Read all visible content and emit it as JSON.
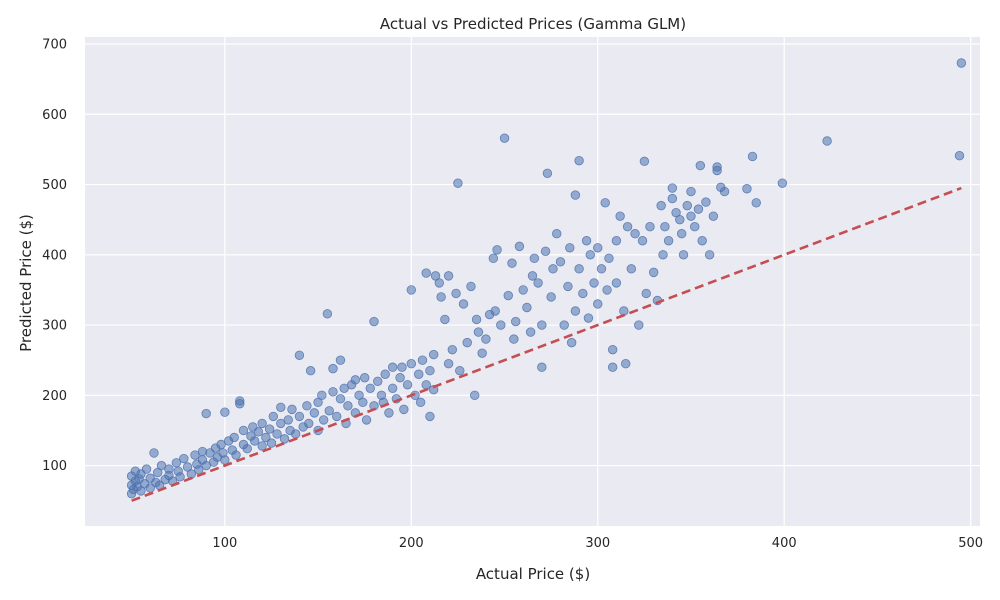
{
  "chart_data": {
    "type": "scatter",
    "title": "Actual vs Predicted Prices (Gamma GLM)",
    "xlabel": "Actual Price ($)",
    "ylabel": "Predicted Price ($)",
    "xlim": [
      25,
      505
    ],
    "ylim": [
      14,
      710
    ],
    "xticks": [
      100,
      200,
      300,
      400,
      500
    ],
    "yticks": [
      100,
      200,
      300,
      400,
      500,
      600,
      700
    ],
    "grid": true,
    "background": "#eaeaf2",
    "point_color": "#4c72b0",
    "point_opacity": 0.55,
    "reference_line": {
      "from": [
        50,
        50
      ],
      "to": [
        495,
        495
      ],
      "style": "dashed",
      "color": "#c44e52"
    },
    "series": [
      {
        "points": [
          [
            50,
            60
          ],
          [
            50,
            72
          ],
          [
            50,
            85
          ],
          [
            51,
            66
          ],
          [
            52,
            78
          ],
          [
            52,
            92
          ],
          [
            53,
            70
          ],
          [
            54,
            81
          ],
          [
            55,
            64
          ],
          [
            55,
            88
          ],
          [
            57,
            74
          ],
          [
            58,
            95
          ],
          [
            60,
            68
          ],
          [
            60,
            82
          ],
          [
            62,
            118
          ],
          [
            63,
            76
          ],
          [
            64,
            90
          ],
          [
            65,
            72
          ],
          [
            66,
            100
          ],
          [
            68,
            80
          ],
          [
            70,
            95
          ],
          [
            70,
            86
          ],
          [
            72,
            78
          ],
          [
            74,
            104
          ],
          [
            75,
            92
          ],
          [
            76,
            84
          ],
          [
            78,
            110
          ],
          [
            80,
            98
          ],
          [
            82,
            88
          ],
          [
            84,
            115
          ],
          [
            85,
            102
          ],
          [
            86,
            94
          ],
          [
            88,
            120
          ],
          [
            88,
            108
          ],
          [
            90,
            174
          ],
          [
            90,
            100
          ],
          [
            92,
            118
          ],
          [
            94,
            105
          ],
          [
            95,
            125
          ],
          [
            96,
            112
          ],
          [
            98,
            130
          ],
          [
            99,
            118
          ],
          [
            100,
            176
          ],
          [
            100,
            108
          ],
          [
            102,
            135
          ],
          [
            104,
            122
          ],
          [
            105,
            140
          ],
          [
            106,
            115
          ],
          [
            108,
            192
          ],
          [
            108,
            188
          ],
          [
            110,
            130
          ],
          [
            110,
            150
          ],
          [
            112,
            124
          ],
          [
            114,
            142
          ],
          [
            115,
            155
          ],
          [
            116,
            135
          ],
          [
            118,
            148
          ],
          [
            120,
            128
          ],
          [
            120,
            160
          ],
          [
            122,
            140
          ],
          [
            124,
            152
          ],
          [
            125,
            132
          ],
          [
            126,
            170
          ],
          [
            128,
            145
          ],
          [
            130,
            183
          ],
          [
            130,
            160
          ],
          [
            132,
            138
          ],
          [
            134,
            165
          ],
          [
            135,
            150
          ],
          [
            136,
            180
          ],
          [
            138,
            145
          ],
          [
            140,
            170
          ],
          [
            140,
            257
          ],
          [
            142,
            155
          ],
          [
            144,
            185
          ],
          [
            145,
            160
          ],
          [
            146,
            235
          ],
          [
            148,
            175
          ],
          [
            150,
            190
          ],
          [
            150,
            150
          ],
          [
            152,
            200
          ],
          [
            153,
            165
          ],
          [
            155,
            316
          ],
          [
            156,
            178
          ],
          [
            158,
            238
          ],
          [
            158,
            205
          ],
          [
            160,
            170
          ],
          [
            162,
            250
          ],
          [
            162,
            195
          ],
          [
            164,
            210
          ],
          [
            165,
            160
          ],
          [
            166,
            185
          ],
          [
            168,
            215
          ],
          [
            170,
            175
          ],
          [
            170,
            222
          ],
          [
            172,
            200
          ],
          [
            174,
            190
          ],
          [
            175,
            225
          ],
          [
            176,
            165
          ],
          [
            178,
            210
          ],
          [
            180,
            305
          ],
          [
            180,
            185
          ],
          [
            182,
            220
          ],
          [
            184,
            200
          ],
          [
            185,
            190
          ],
          [
            186,
            230
          ],
          [
            188,
            175
          ],
          [
            190,
            240
          ],
          [
            190,
            210
          ],
          [
            192,
            195
          ],
          [
            194,
            225
          ],
          [
            195,
            240
          ],
          [
            196,
            180
          ],
          [
            198,
            215
          ],
          [
            200,
            245
          ],
          [
            200,
            350
          ],
          [
            202,
            200
          ],
          [
            204,
            230
          ],
          [
            205,
            190
          ],
          [
            206,
            250
          ],
          [
            208,
            374
          ],
          [
            208,
            215
          ],
          [
            210,
            235
          ],
          [
            210,
            170
          ],
          [
            212,
            208
          ],
          [
            212,
            258
          ],
          [
            213,
            370
          ],
          [
            215,
            360
          ],
          [
            216,
            340
          ],
          [
            218,
            308
          ],
          [
            220,
            370
          ],
          [
            220,
            245
          ],
          [
            222,
            265
          ],
          [
            224,
            345
          ],
          [
            225,
            502
          ],
          [
            226,
            235
          ],
          [
            228,
            330
          ],
          [
            230,
            275
          ],
          [
            232,
            355
          ],
          [
            234,
            200
          ],
          [
            235,
            308
          ],
          [
            236,
            290
          ],
          [
            238,
            260
          ],
          [
            240,
            280
          ],
          [
            242,
            315
          ],
          [
            244,
            395
          ],
          [
            245,
            320
          ],
          [
            246,
            407
          ],
          [
            248,
            300
          ],
          [
            250,
            566
          ],
          [
            252,
            342
          ],
          [
            254,
            388
          ],
          [
            255,
            280
          ],
          [
            256,
            305
          ],
          [
            258,
            412
          ],
          [
            260,
            350
          ],
          [
            262,
            325
          ],
          [
            264,
            290
          ],
          [
            265,
            370
          ],
          [
            266,
            395
          ],
          [
            268,
            360
          ],
          [
            270,
            240
          ],
          [
            270,
            300
          ],
          [
            272,
            405
          ],
          [
            273,
            516
          ],
          [
            275,
            340
          ],
          [
            276,
            380
          ],
          [
            278,
            430
          ],
          [
            280,
            390
          ],
          [
            282,
            300
          ],
          [
            284,
            355
          ],
          [
            285,
            410
          ],
          [
            286,
            275
          ],
          [
            288,
            320
          ],
          [
            288,
            485
          ],
          [
            290,
            380
          ],
          [
            290,
            534
          ],
          [
            292,
            345
          ],
          [
            294,
            420
          ],
          [
            295,
            310
          ],
          [
            296,
            400
          ],
          [
            298,
            360
          ],
          [
            300,
            330
          ],
          [
            300,
            410
          ],
          [
            302,
            380
          ],
          [
            304,
            474
          ],
          [
            305,
            350
          ],
          [
            306,
            395
          ],
          [
            308,
            240
          ],
          [
            308,
            265
          ],
          [
            310,
            420
          ],
          [
            310,
            360
          ],
          [
            312,
            455
          ],
          [
            314,
            320
          ],
          [
            315,
            245
          ],
          [
            316,
            440
          ],
          [
            318,
            380
          ],
          [
            320,
            430
          ],
          [
            322,
            300
          ],
          [
            324,
            420
          ],
          [
            325,
            533
          ],
          [
            326,
            345
          ],
          [
            328,
            440
          ],
          [
            330,
            375
          ],
          [
            332,
            335
          ],
          [
            334,
            470
          ],
          [
            335,
            400
          ],
          [
            336,
            440
          ],
          [
            338,
            420
          ],
          [
            340,
            480
          ],
          [
            340,
            495
          ],
          [
            342,
            460
          ],
          [
            344,
            450
          ],
          [
            345,
            430
          ],
          [
            346,
            400
          ],
          [
            348,
            470
          ],
          [
            350,
            490
          ],
          [
            350,
            455
          ],
          [
            352,
            440
          ],
          [
            354,
            465
          ],
          [
            355,
            527
          ],
          [
            356,
            420
          ],
          [
            358,
            475
          ],
          [
            360,
            400
          ],
          [
            362,
            455
          ],
          [
            364,
            525
          ],
          [
            364,
            520
          ],
          [
            366,
            496
          ],
          [
            368,
            490
          ],
          [
            380,
            494
          ],
          [
            383,
            540
          ],
          [
            385,
            474
          ],
          [
            399,
            502
          ],
          [
            423,
            562
          ],
          [
            494,
            541
          ],
          [
            495,
            673
          ]
        ]
      }
    ]
  }
}
